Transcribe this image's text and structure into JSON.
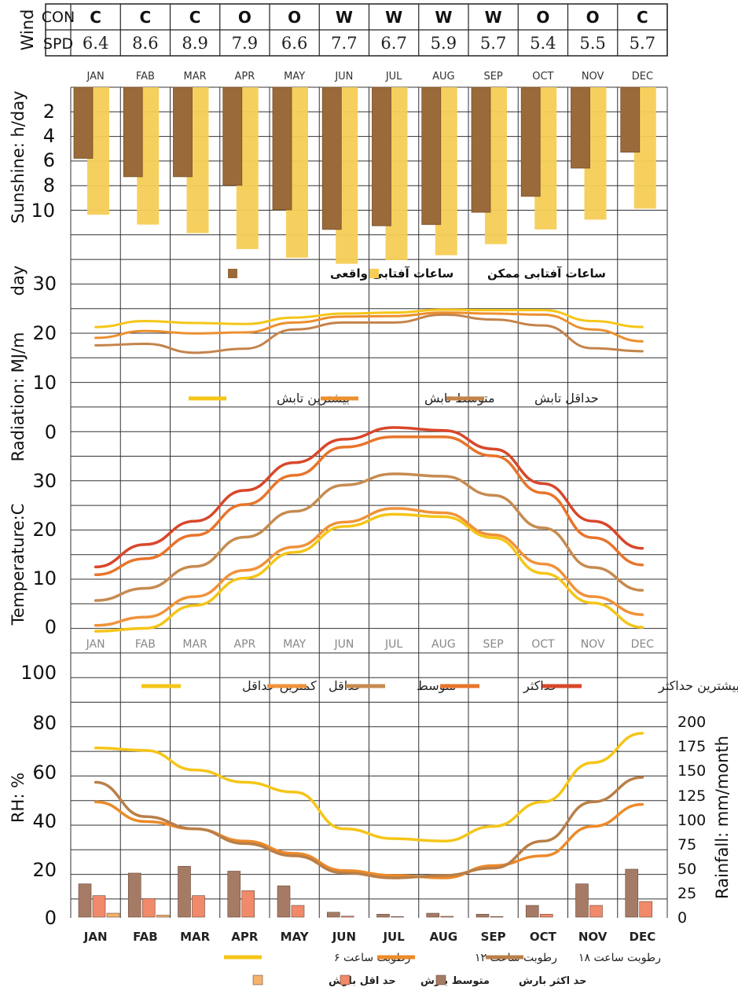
{
  "months": [
    "JAN",
    "FAB",
    "MAR",
    "APR",
    "MAY",
    "JUN",
    "JUL",
    "AUG",
    "SEP",
    "OCT",
    "NOV",
    "DEC"
  ],
  "wind": {
    "label": "Wind",
    "con_label": "CON",
    "spd_label": "SPD",
    "con": [
      "C",
      "C",
      "C",
      "O",
      "O",
      "W",
      "W",
      "W",
      "W",
      "O",
      "O",
      "C"
    ],
    "spd": [
      "6.4",
      "8.6",
      "8.9",
      "7.9",
      "6.6",
      "7.7",
      "6.7",
      "5.9",
      "5.7",
      "5.4",
      "5.5",
      "5.7"
    ]
  },
  "axis_labels": {
    "sunshine": "Sunshine: h/day",
    "radiation": "Radiation: MJ/m",
    "radiation_day": "day",
    "temperature": "Temperature:C",
    "rh": "RH: %",
    "rainfall": "Rainfall: mm/month"
  },
  "ticks": {
    "sunshine": [
      "2",
      "4",
      "6",
      "8",
      "10"
    ],
    "radiation": [
      "30",
      "20",
      "10",
      "0"
    ],
    "temperature": [
      "30",
      "20",
      "10",
      "0"
    ],
    "rh": [
      "100",
      "80",
      "60",
      "40",
      "20",
      "0"
    ],
    "rainfall": [
      "200",
      "175",
      "150",
      "125",
      "100",
      "75",
      "50",
      "25",
      "0"
    ]
  },
  "legends": {
    "sunshine": [
      "ساعات آفتابی واقعی",
      "ساعات آفتابی ممکن"
    ],
    "radiation": [
      "بیشترین تابش",
      "متوسط تابش",
      "حداقل تابش"
    ],
    "temperature": [
      "کمترین حداقل",
      "حداقل",
      "متوسط",
      "حداکثر",
      "بیشترین حداکثر"
    ],
    "rh": [
      "رطوبت ساعت ۶",
      "رطوبت ساعت ۱۲",
      "رطوبت ساعت ۱۸"
    ],
    "rain": [
      "حد اقل بارش",
      "متوسط بارش",
      "حد اکثر بارش"
    ]
  },
  "colors": {
    "sun_actual": "#9a6a3a",
    "sun_possible": "#f6cd55",
    "rad_max": "#f5c518",
    "rad_mean": "#ec8f2e",
    "rad_min": "#c4834a",
    "t_absmin": "#f5c518",
    "t_min": "#f0923a",
    "t_mean": "#c68b50",
    "t_max": "#e8742a",
    "t_absmax": "#d8472a",
    "rh6": "#f5c518",
    "rh12": "#ec8a2a",
    "rh18": "#b97f49",
    "rain_max": "#a67b66",
    "rain_mean": "#f08a6a",
    "rain_min": "#f6b26b"
  },
  "chart_data": [
    {
      "type": "bar",
      "categories": [
        "JAN",
        "FAB",
        "MAR",
        "APR",
        "MAY",
        "JUN",
        "JUL",
        "AUG",
        "SEP",
        "OCT",
        "NOV",
        "DEC"
      ],
      "ylabel": "Sunshine: h/day",
      "ylim": [
        0,
        14
      ],
      "series": [
        {
          "name": "ساعات آفتابی واقعی",
          "values": [
            5.8,
            7.3,
            7.3,
            8.0,
            10.0,
            11.6,
            11.3,
            11.2,
            10.2,
            8.9,
            6.6,
            5.3
          ]
        },
        {
          "name": "ساعات آفتابی ممکن",
          "values": [
            10.4,
            11.2,
            11.9,
            13.2,
            13.9,
            14.4,
            14.1,
            13.7,
            12.8,
            11.6,
            10.8,
            9.9
          ]
        }
      ]
    },
    {
      "type": "line",
      "categories": [
        "JAN",
        "FAB",
        "MAR",
        "APR",
        "MAY",
        "JUN",
        "JUL",
        "AUG",
        "SEP",
        "OCT",
        "NOV",
        "DEC"
      ],
      "ylabel": "Radiation: MJ/m day",
      "ylim": [
        0,
        30
      ],
      "series": [
        {
          "name": "بیشترین تابش",
          "values": [
            21.1,
            22.3,
            21.9,
            21.7,
            23.0,
            23.8,
            24.0,
            24.6,
            24.5,
            24.5,
            22.3,
            21.1
          ]
        },
        {
          "name": "متوسط تابش",
          "values": [
            18.9,
            20.3,
            19.8,
            20.0,
            22.0,
            23.2,
            23.3,
            24.0,
            23.8,
            23.6,
            20.6,
            18.2
          ]
        },
        {
          "name": "حداقل تابش",
          "values": [
            17.4,
            17.7,
            15.9,
            16.7,
            20.6,
            22.0,
            22.0,
            23.6,
            22.6,
            21.4,
            16.8,
            16.2
          ]
        }
      ]
    },
    {
      "type": "line",
      "categories": [
        "JAN",
        "FAB",
        "MAR",
        "APR",
        "MAY",
        "JUN",
        "JUL",
        "AUG",
        "SEP",
        "OCT",
        "NOV",
        "DEC"
      ],
      "ylabel": "Temperature:C",
      "ylim": [
        0,
        40
      ],
      "series": [
        {
          "name": "کمترین حداقل",
          "values": [
            -1.0,
            -0.4,
            4.3,
            9.9,
            15.2,
            20.5,
            23.0,
            22.5,
            18.2,
            10.9,
            4.8,
            -0.2
          ]
        },
        {
          "name": "حداقل",
          "values": [
            0.2,
            1.9,
            6.1,
            11.5,
            16.3,
            21.4,
            24.2,
            23.3,
            18.8,
            12.8,
            6.1,
            2.4
          ]
        },
        {
          "name": "متوسط",
          "values": [
            5.3,
            7.8,
            12.3,
            18.3,
            23.6,
            29.0,
            31.3,
            30.8,
            26.9,
            20.2,
            12.1,
            7.4
          ]
        },
        {
          "name": "حداکثر",
          "values": [
            10.6,
            13.9,
            18.7,
            25.0,
            31.0,
            36.8,
            38.9,
            38.9,
            35.0,
            27.4,
            18.2,
            12.6
          ]
        },
        {
          "name": "بیشترین حداکثر",
          "values": [
            12.2,
            16.8,
            21.6,
            27.9,
            33.6,
            38.4,
            40.8,
            40.2,
            36.4,
            29.3,
            21.6,
            16.0
          ]
        }
      ]
    },
    {
      "type": "line",
      "categories": [
        "JAN",
        "FAB",
        "MAR",
        "APR",
        "MAY",
        "JUN",
        "JUL",
        "AUG",
        "SEP",
        "OCT",
        "NOV",
        "DEC"
      ],
      "ylabel": "RH: %",
      "ylim": [
        0,
        100
      ],
      "series": [
        {
          "name": "رطوبت ساعت ۶",
          "values": [
            69,
            68,
            60,
            55,
            51,
            36,
            32,
            31,
            37,
            47,
            63,
            75
          ]
        },
        {
          "name": "رطوبت ساعت ۱۲",
          "values": [
            47,
            39,
            36,
            31,
            26,
            19,
            17,
            16,
            21,
            25,
            37,
            46
          ]
        },
        {
          "name": "رطوبت ساعت ۱۸",
          "values": [
            55,
            41,
            36,
            30,
            25,
            18,
            16,
            17,
            20,
            31,
            47,
            57
          ]
        }
      ]
    },
    {
      "type": "bar",
      "categories": [
        "JAN",
        "FAB",
        "MAR",
        "APR",
        "MAY",
        "JUN",
        "JUL",
        "AUG",
        "SEP",
        "OCT",
        "NOV",
        "DEC"
      ],
      "ylabel": "Rainfall: mm/month",
      "ylim": [
        0,
        200
      ],
      "series": [
        {
          "name": "حد اکثر بارش",
          "values": [
            34,
            45,
            52,
            47,
            32,
            5,
            3,
            4,
            3,
            12,
            34,
            49
          ]
        },
        {
          "name": "متوسط بارش",
          "values": [
            22,
            19,
            22,
            27,
            12,
            1,
            0.5,
            0.8,
            0.6,
            3,
            12,
            16
          ]
        },
        {
          "name": "حد اقل بارش",
          "values": [
            4,
            2,
            0,
            0,
            0,
            0,
            0,
            0,
            0,
            0,
            0,
            0
          ]
        }
      ]
    }
  ]
}
